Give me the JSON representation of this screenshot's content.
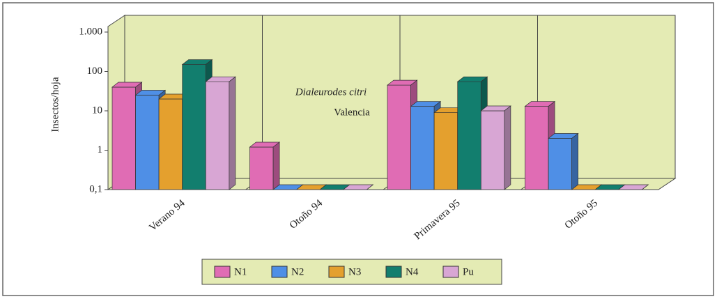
{
  "chart_data": {
    "type": "bar3d",
    "y_label": "Insectos/hoja",
    "annotations": [
      "Dialeurodes citri",
      "Valencia"
    ],
    "categories": [
      "Verano 94",
      "Otoño 94",
      "Primavera 95",
      "Otoño 95"
    ],
    "series": [
      {
        "name": "N1",
        "color": "#e06cb4",
        "values": [
          40,
          1.2,
          45,
          13
        ]
      },
      {
        "name": "N2",
        "color": "#4f8fe6",
        "values": [
          25,
          0.1,
          13,
          2
        ]
      },
      {
        "name": "N3",
        "color": "#e4a02e",
        "values": [
          20,
          0.1,
          9,
          0.1
        ]
      },
      {
        "name": "N4",
        "color": "#127e6e",
        "values": [
          150,
          0.1,
          55,
          0.1
        ]
      },
      {
        "name": "Pu",
        "color": "#d8a6d4",
        "values": [
          55,
          0.1,
          10,
          0.1
        ]
      }
    ],
    "ylim": [
      0.1,
      1000
    ],
    "log_scale": true,
    "yticks": [
      {
        "value": 0.1,
        "label": "0,1"
      },
      1,
      10,
      100,
      {
        "value": 1000,
        "label": "1.000"
      }
    ],
    "wall_color": "#e4ebb4",
    "legend": "bottom"
  }
}
